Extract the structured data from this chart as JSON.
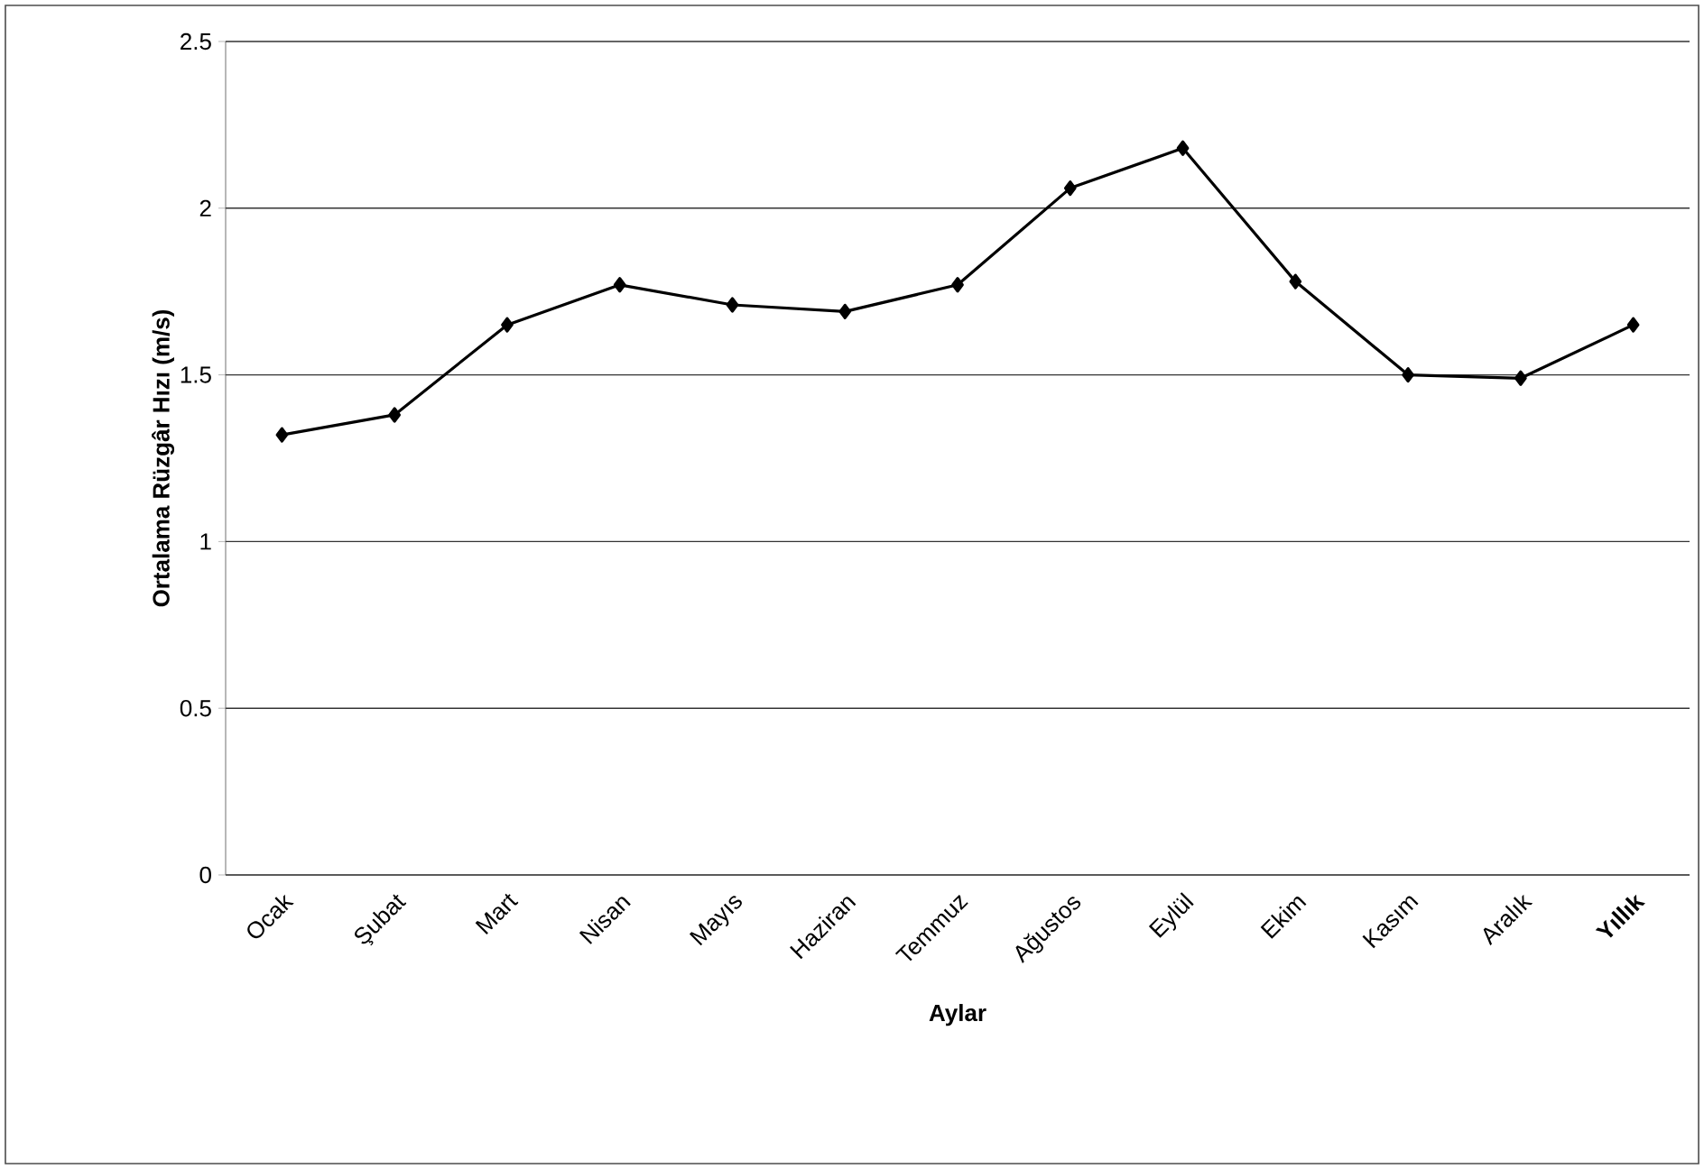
{
  "chart_data": {
    "type": "line",
    "xlabel": "Aylar",
    "ylabel": "Ortalama Rüzgâr Hızı (m/s)",
    "categories": [
      "Ocak",
      "Şubat",
      "Mart",
      "Nisan",
      "Mayıs",
      "Haziran",
      "Temmuz",
      "Ağustos",
      "Eylül",
      "Ekim",
      "Kasım",
      "Aralık",
      "**Yıllık**"
    ],
    "values": [
      1.32,
      1.38,
      1.65,
      1.77,
      1.71,
      1.69,
      1.77,
      2.06,
      2.18,
      1.78,
      1.5,
      1.49,
      1.65
    ],
    "color": "#000000",
    "ylim": [
      0,
      2.5
    ],
    "yticks": [
      0,
      0.5,
      1,
      1.5,
      2,
      2.5
    ],
    "grid": "y",
    "marker": "diamond",
    "line_style": "solid"
  }
}
